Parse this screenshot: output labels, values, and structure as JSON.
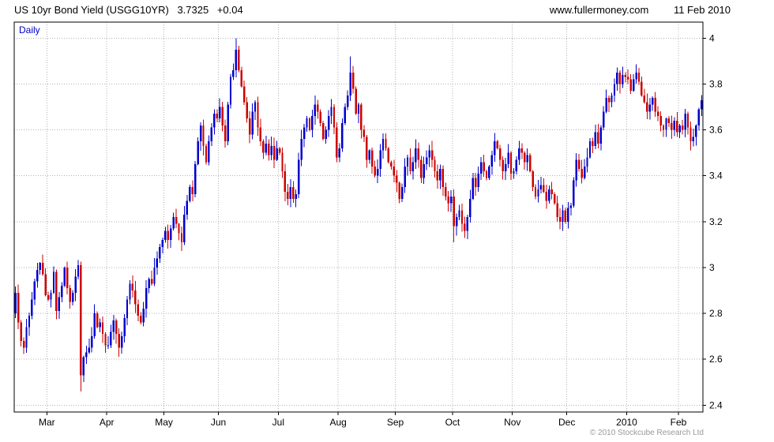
{
  "header": {
    "instrument": "US 10yr Bond Yield (USGG10YR)",
    "last": "3.7325",
    "change": "+0.04",
    "site": "www.fullermoney.com",
    "date": "11 Feb 2010"
  },
  "chart": {
    "frequency_label": "Daily",
    "copyright": "© 2010 Stockcube Research Ltd",
    "colors": {
      "up": "#0000cc",
      "down": "#cc0000",
      "grid": "#b3b3b3",
      "frame": "#000000",
      "daily_label": "#0000cc"
    }
  },
  "chart_data": {
    "type": "candlestick",
    "title": "US 10yr Bond Yield (USGG10YR)",
    "frequency": "Daily",
    "xlabel": "",
    "ylabel": "",
    "ylim": [
      2.37,
      4.07
    ],
    "y_ticks": [
      2.4,
      2.6,
      2.8,
      3.0,
      3.2,
      3.4,
      3.6,
      3.8,
      4.0
    ],
    "x_tick_labels": [
      "Mar",
      "Apr",
      "May",
      "Jun",
      "Jul",
      "Aug",
      "Sep",
      "Oct",
      "Nov",
      "Dec",
      "2010",
      "Feb"
    ],
    "month_start_indices": [
      12,
      34,
      55,
      75,
      97,
      119,
      140,
      161,
      183,
      203,
      225,
      244
    ],
    "grid": true,
    "first_open": 2.8,
    "last_close_display": "3.7325",
    "change_display": "+0.04",
    "closes": [
      2.89,
      2.76,
      2.68,
      2.65,
      2.74,
      2.79,
      2.86,
      2.94,
      2.99,
      3.02,
      2.97,
      2.88,
      2.86,
      2.89,
      2.98,
      2.81,
      2.87,
      2.92,
      3.0,
      2.91,
      2.85,
      2.89,
      2.96,
      3.01,
      2.53,
      2.61,
      2.63,
      2.65,
      2.7,
      2.8,
      2.74,
      2.76,
      2.71,
      2.66,
      2.66,
      2.72,
      2.77,
      2.71,
      2.65,
      2.7,
      2.78,
      2.86,
      2.93,
      2.9,
      2.84,
      2.79,
      2.76,
      2.82,
      2.91,
      2.95,
      2.93,
      3.0,
      3.04,
      3.09,
      3.12,
      3.16,
      3.12,
      3.17,
      3.22,
      3.19,
      3.15,
      3.11,
      3.23,
      3.29,
      3.35,
      3.32,
      3.45,
      3.55,
      3.62,
      3.53,
      3.46,
      3.55,
      3.61,
      3.67,
      3.65,
      3.7,
      3.62,
      3.55,
      3.71,
      3.83,
      3.86,
      3.95,
      3.86,
      3.79,
      3.72,
      3.65,
      3.58,
      3.68,
      3.72,
      3.61,
      3.55,
      3.5,
      3.54,
      3.49,
      3.53,
      3.47,
      3.52,
      3.5,
      3.42,
      3.33,
      3.3,
      3.35,
      3.3,
      3.32,
      3.47,
      3.56,
      3.61,
      3.65,
      3.6,
      3.66,
      3.71,
      3.68,
      3.63,
      3.56,
      3.6,
      3.66,
      3.7,
      3.61,
      3.48,
      3.52,
      3.63,
      3.7,
      3.75,
      3.85,
      3.78,
      3.67,
      3.71,
      3.6,
      3.57,
      3.47,
      3.51,
      3.44,
      3.4,
      3.43,
      3.51,
      3.56,
      3.52,
      3.46,
      3.44,
      3.4,
      3.37,
      3.3,
      3.35,
      3.44,
      3.48,
      3.42,
      3.46,
      3.52,
      3.47,
      3.39,
      3.45,
      3.48,
      3.51,
      3.47,
      3.42,
      3.38,
      3.43,
      3.35,
      3.31,
      3.28,
      3.31,
      3.18,
      3.22,
      3.25,
      3.19,
      3.16,
      3.22,
      3.3,
      3.39,
      3.35,
      3.41,
      3.46,
      3.42,
      3.39,
      3.44,
      3.49,
      3.55,
      3.52,
      3.47,
      3.42,
      3.45,
      3.5,
      3.41,
      3.42,
      3.47,
      3.52,
      3.5,
      3.46,
      3.49,
      3.42,
      3.35,
      3.31,
      3.34,
      3.36,
      3.33,
      3.29,
      3.34,
      3.32,
      3.28,
      3.22,
      3.2,
      3.25,
      3.2,
      3.26,
      3.27,
      3.38,
      3.47,
      3.43,
      3.39,
      3.44,
      3.48,
      3.55,
      3.53,
      3.59,
      3.54,
      3.61,
      3.68,
      3.74,
      3.72,
      3.75,
      3.8,
      3.85,
      3.8,
      3.84,
      3.83,
      3.82,
      3.77,
      3.82,
      3.85,
      3.81,
      3.75,
      3.72,
      3.68,
      3.71,
      3.74,
      3.68,
      3.66,
      3.62,
      3.6,
      3.65,
      3.63,
      3.6,
      3.64,
      3.59,
      3.62,
      3.6,
      3.67,
      3.61,
      3.55,
      3.57,
      3.62,
      3.69,
      3.73
    ],
    "wick_overrides": {
      "24": {
        "low": 2.46
      },
      "81": {
        "high": 4.0
      },
      "123": {
        "high": 3.92
      },
      "161": {
        "low": 3.11
      }
    }
  }
}
